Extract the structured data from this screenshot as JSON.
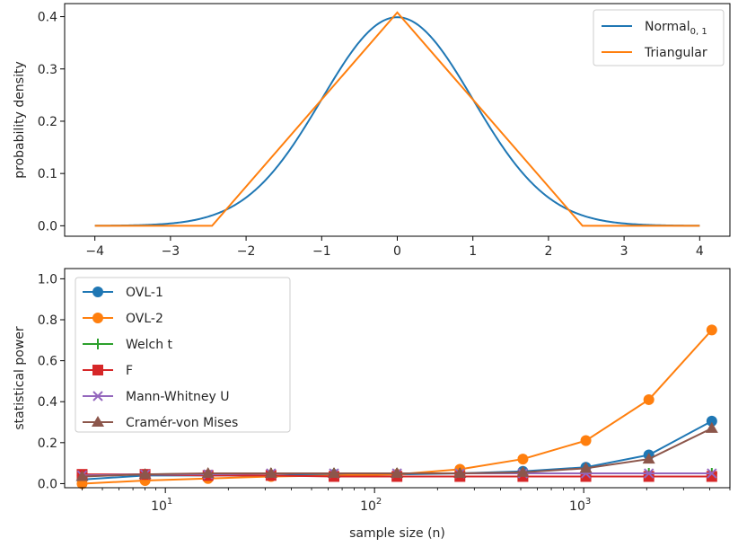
{
  "chart_data": [
    {
      "type": "line",
      "ylabel": "probability density",
      "xlim": [
        -4.4,
        4.4
      ],
      "ylim": [
        -0.02,
        0.425
      ],
      "xticks": [
        -4,
        -3,
        -2,
        -1,
        0,
        1,
        2,
        3,
        4
      ],
      "xtick_labels": [
        "−4",
        "−3",
        "−2",
        "−1",
        "0",
        "1",
        "2",
        "3",
        "4"
      ],
      "yticks": [
        0.0,
        0.1,
        0.2,
        0.3,
        0.4
      ],
      "ytick_labels": [
        "0.0",
        "0.1",
        "0.2",
        "0.3",
        "0.4"
      ],
      "legend_position": "top-right",
      "series": [
        {
          "name_main": "Normal",
          "name_sub": "0, 1",
          "color": "#1f77b4",
          "function": "normal",
          "mu": 0,
          "sigma": 1
        },
        {
          "name": "Triangular",
          "color": "#ff7f0e",
          "x": [
            -4,
            -2.45,
            0,
            2.45,
            4
          ],
          "y": [
            0,
            0,
            0.408,
            0,
            0
          ]
        }
      ]
    },
    {
      "type": "line",
      "xlabel": "sample size (n)",
      "ylabel": "statistical power",
      "xscale": "log",
      "xlim": [
        3.3,
        5000
      ],
      "ylim": [
        -0.02,
        1.05
      ],
      "xticks": [
        10,
        100,
        1000
      ],
      "xtick_labels_base": [
        "10",
        "10",
        "10"
      ],
      "xtick_labels_exp": [
        "1",
        "2",
        "3"
      ],
      "yticks": [
        0.0,
        0.2,
        0.4,
        0.6,
        0.8,
        1.0
      ],
      "ytick_labels": [
        "0.0",
        "0.2",
        "0.4",
        "0.6",
        "0.8",
        "1.0"
      ],
      "legend_position": "top-left",
      "x": [
        4,
        8,
        16,
        32,
        64,
        128,
        256,
        512,
        1024,
        2048,
        4096
      ],
      "series": [
        {
          "name": "OVL-1",
          "color": "#1f77b4",
          "marker": "circle",
          "values": [
            0.02,
            0.04,
            0.04,
            0.04,
            0.045,
            0.045,
            0.05,
            0.06,
            0.08,
            0.14,
            0.305
          ]
        },
        {
          "name": "OVL-2",
          "color": "#ff7f0e",
          "marker": "circle",
          "values": [
            0.0,
            0.015,
            0.025,
            0.035,
            0.04,
            0.045,
            0.07,
            0.12,
            0.21,
            0.41,
            0.75
          ]
        },
        {
          "name": "Welch t",
          "color": "#2ca02c",
          "marker": "plus",
          "values": [
            0.04,
            0.045,
            0.048,
            0.05,
            0.05,
            0.05,
            0.05,
            0.05,
            0.05,
            0.05,
            0.05
          ]
        },
        {
          "name": "F",
          "color": "#d62728",
          "marker": "square",
          "values": [
            0.045,
            0.045,
            0.04,
            0.04,
            0.035,
            0.035,
            0.035,
            0.035,
            0.035,
            0.035,
            0.035
          ]
        },
        {
          "name": "Mann-Whitney U",
          "color": "#9467bd",
          "marker": "x",
          "values": [
            0.04,
            0.045,
            0.045,
            0.05,
            0.05,
            0.05,
            0.05,
            0.05,
            0.05,
            0.05,
            0.05
          ]
        },
        {
          "name": "Cramér-von Mises",
          "color": "#8c564b",
          "marker": "triangle",
          "values": [
            0.035,
            0.045,
            0.05,
            0.05,
            0.05,
            0.05,
            0.05,
            0.055,
            0.075,
            0.12,
            0.27
          ]
        }
      ]
    }
  ]
}
